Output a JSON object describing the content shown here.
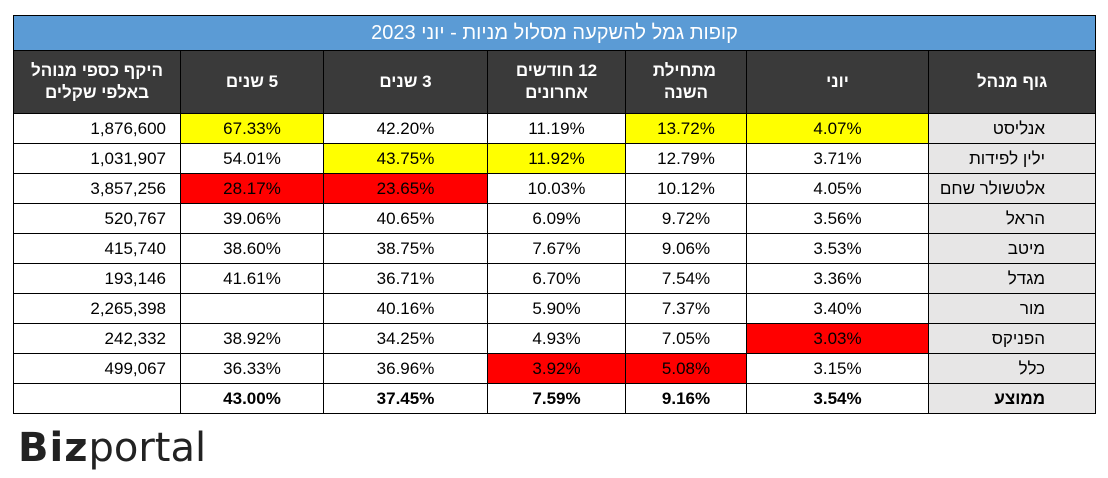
{
  "title": "קופות גמל להשקעה מסלול מניות - יוני 2023",
  "headers": {
    "aum": "היקף כספי מנוהל באלפי שקלים",
    "y5": "5 שנים",
    "y3": "3 שנים",
    "m12": "12 חודשים אחרונים",
    "ytd": "מתחילת השנה",
    "june": "יוני",
    "manager": "גוף מנהל"
  },
  "rows": [
    {
      "manager": "אנליסט",
      "june": "4.07%",
      "ytd": "13.72%",
      "m12": "11.19%",
      "y3": "42.20%",
      "y5": "67.33%",
      "aum": "1,876,600"
    },
    {
      "manager": "ילין לפידות",
      "june": "3.71%",
      "ytd": "12.79%",
      "m12": "11.92%",
      "y3": "43.75%",
      "y5": "54.01%",
      "aum": "1,031,907"
    },
    {
      "manager": "אלטשולר שחם",
      "june": "4.05%",
      "ytd": "10.12%",
      "m12": "10.03%",
      "y3": "23.65%",
      "y5": "28.17%",
      "aum": "3,857,256"
    },
    {
      "manager": "הראל",
      "june": "3.56%",
      "ytd": "9.72%",
      "m12": "6.09%",
      "y3": "40.65%",
      "y5": "39.06%",
      "aum": "520,767"
    },
    {
      "manager": "מיטב",
      "june": "3.53%",
      "ytd": "9.06%",
      "m12": "7.67%",
      "y3": "38.75%",
      "y5": "38.60%",
      "aum": "415,740"
    },
    {
      "manager": "מגדל",
      "june": "3.36%",
      "ytd": "7.54%",
      "m12": "6.70%",
      "y3": "36.71%",
      "y5": "41.61%",
      "aum": "193,146"
    },
    {
      "manager": "מור",
      "june": "3.40%",
      "ytd": "7.37%",
      "m12": "5.90%",
      "y3": "40.16%",
      "y5": "",
      "aum": "2,265,398"
    },
    {
      "manager": "הפניקס",
      "june": "3.03%",
      "ytd": "7.05%",
      "m12": "4.93%",
      "y3": "34.25%",
      "y5": "38.92%",
      "aum": "242,332"
    },
    {
      "manager": "כלל",
      "june": "3.15%",
      "ytd": "5.08%",
      "m12": "3.92%",
      "y3": "36.96%",
      "y5": "36.33%",
      "aum": "499,067"
    }
  ],
  "average": {
    "manager": "ממוצע",
    "june": "3.54%",
    "ytd": "9.16%",
    "m12": "7.59%",
    "y3": "37.45%",
    "y5": "43.00%",
    "aum": ""
  },
  "colors": {
    "title_bg": "#5b9bd5",
    "header_bg": "#3a3a3a",
    "highlight_best": "#ffff00",
    "highlight_worst": "#ff0000",
    "name_bg": "#e7e6e6"
  },
  "logo": {
    "text_bold": "Biz",
    "text_light": "portal"
  }
}
